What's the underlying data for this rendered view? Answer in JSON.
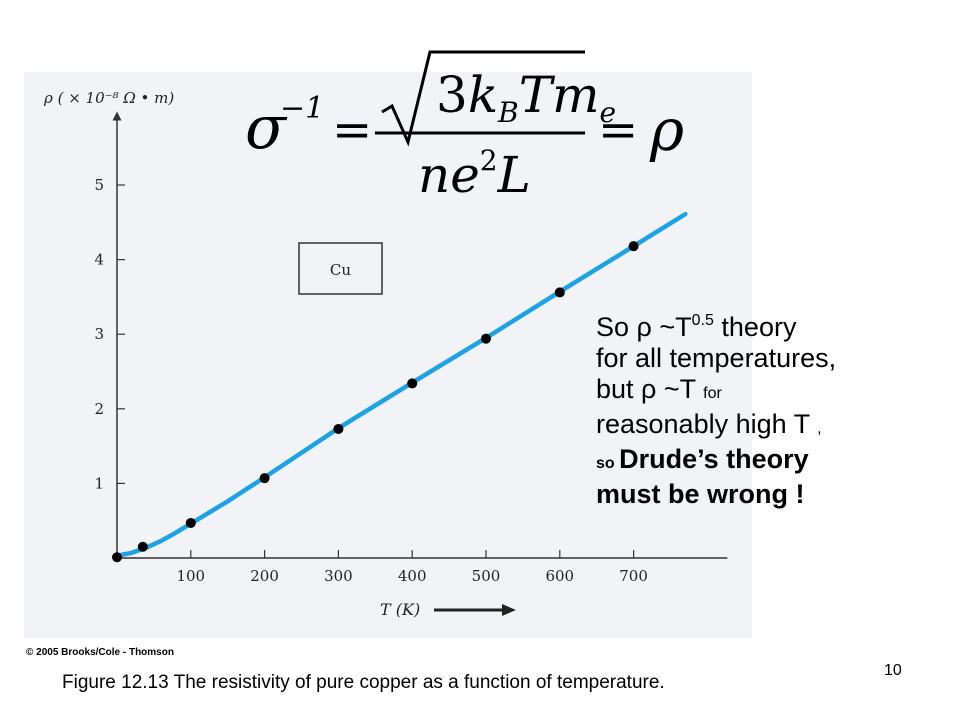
{
  "chart_data": {
    "type": "line",
    "ylabel": "ρ ( × 10⁻⁸ Ω • m)",
    "xlabel": "T (K)",
    "xlim": [
      0,
      800
    ],
    "ylim": [
      0,
      6
    ],
    "x_ticks": [
      100,
      200,
      300,
      400,
      500,
      600,
      700
    ],
    "y_ticks": [
      1,
      2,
      3,
      4,
      5
    ],
    "grid": false,
    "annotation_box": "Cu",
    "series": [
      {
        "color": "#1ea2e6",
        "curve": {
          "x": [
            0,
            20,
            40,
            60,
            80,
            100,
            150,
            200,
            300,
            400,
            500,
            600,
            700,
            770
          ],
          "y": [
            0.03,
            0.07,
            0.14,
            0.23,
            0.34,
            0.46,
            0.76,
            1.08,
            1.74,
            2.35,
            2.95,
            3.57,
            4.18,
            4.61
          ]
        },
        "points": {
          "x": [
            0,
            35,
            100,
            200,
            300,
            400,
            500,
            600,
            700
          ],
          "y": [
            0.01,
            0.15,
            0.47,
            1.07,
            1.73,
            2.34,
            2.94,
            3.56,
            4.18
          ]
        }
      }
    ]
  },
  "formula": {
    "sigma": "σ",
    "exponent": "−1",
    "equals": "=",
    "sqrt_const": "3",
    "k": "k",
    "k_sub": "B",
    "T": "T",
    "m": "m",
    "m_sub": "e",
    "n": "n",
    "e": "e",
    "e_sup": "2",
    "L": "L",
    "rho": "ρ"
  },
  "commentary": {
    "line1_a": "So ρ ~T",
    "line1_sup": "0.5",
    "line1_b": " theory",
    "line2": "for all temperatures,",
    "line3_a": "but ρ ~T ",
    "line3_small": "for",
    "line4_a": "reasonably high T ",
    "line4_small": ",",
    "line5_small": "so ",
    "line5_bold": "Drude’s theory",
    "line6_bold": "must be wrong !"
  },
  "copyright": "© 2005 Brooks/Cole - Thomson",
  "caption": "Figure 12.13 The resistivity of pure copper as a function of temperature.",
  "slide_number": "10"
}
